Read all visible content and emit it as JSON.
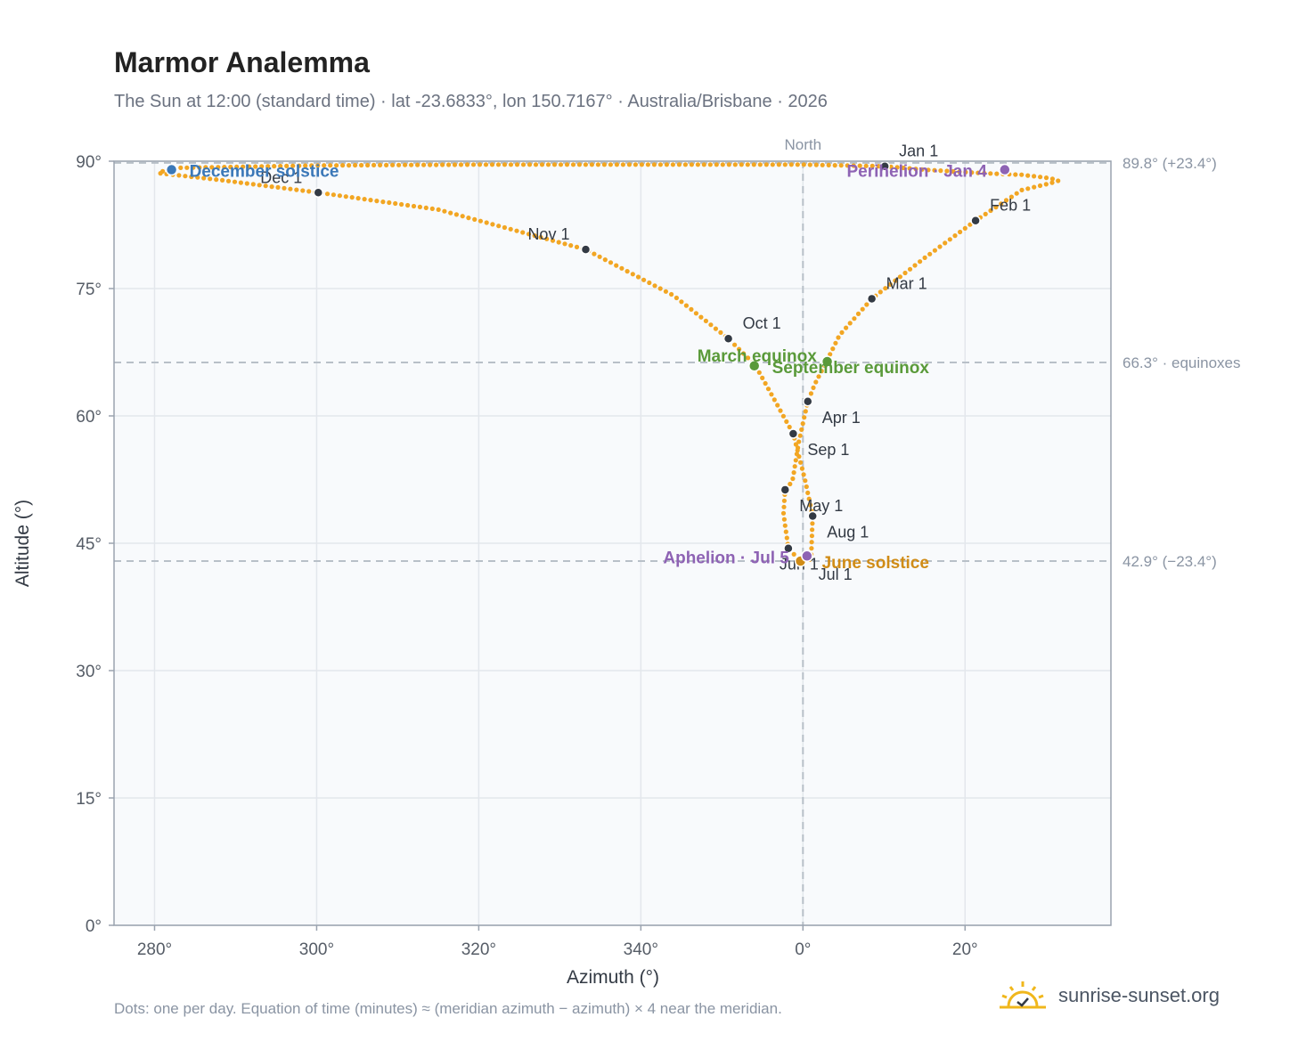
{
  "header": {
    "title": "Marmor Analemma",
    "subtitle": "The Sun at 12:00 (standard time) · lat -23.6833°, lon 150.7167° · Australia/Brisbane · 2026"
  },
  "footer": {
    "note": "Dots: one per day. Equation of time (minutes) ≈ (meridian azimuth − azimuth) × 4 near the meridian.",
    "brand": "sunrise-sunset.org"
  },
  "colors": {
    "curve": "#f2a623",
    "month_dot": "#333a44",
    "solstice_dec": "#3b78b8",
    "solstice_jun": "#d08c17",
    "equinox": "#5a9a3a",
    "apsis": "#8e63b4",
    "guide": "#b8c0c8",
    "plot_bg": "#f8fafc",
    "grid": "#e3e7ec",
    "frame": "#9aa3af"
  },
  "chart_data": {
    "type": "scatter",
    "title": "Marmor Analemma",
    "xlabel": "Azimuth (°)",
    "ylabel": "Altitude (°)",
    "xlim": [
      -85,
      38
    ],
    "ylim": [
      0,
      90
    ],
    "x_ticks": [
      {
        "value": -80,
        "label": "280°"
      },
      {
        "value": -60,
        "label": "300°"
      },
      {
        "value": -40,
        "label": "320°"
      },
      {
        "value": -20,
        "label": "340°"
      },
      {
        "value": 0,
        "label": "0°"
      },
      {
        "value": 20,
        "label": "20°"
      }
    ],
    "y_ticks": [
      {
        "value": 0,
        "label": "0°"
      },
      {
        "value": 15,
        "label": "15°"
      },
      {
        "value": 30,
        "label": "30°"
      },
      {
        "value": 45,
        "label": "45°"
      },
      {
        "value": 60,
        "label": "60°"
      },
      {
        "value": 75,
        "label": "75°"
      },
      {
        "value": 90,
        "label": "90°"
      }
    ],
    "grid": true,
    "meridian": {
      "x": 0,
      "label": "North"
    },
    "reference_lines": [
      {
        "y": 89.8,
        "label": "89.8° (+23.4°)"
      },
      {
        "y": 66.3,
        "label": "66.3° · equinoxes"
      },
      {
        "y": 42.9,
        "label": "42.9° (−23.4°)"
      }
    ],
    "series_path": [
      {
        "x": 10.1,
        "y": 89.4
      },
      {
        "x": 15,
        "y": 89.0
      },
      {
        "x": 22,
        "y": 88.6
      },
      {
        "x": 27,
        "y": 88.4
      },
      {
        "x": 30.5,
        "y": 88.0
      },
      {
        "x": 31.5,
        "y": 87.7
      },
      {
        "x": 30.5,
        "y": 87.4
      },
      {
        "x": 27,
        "y": 86.6
      },
      {
        "x": 21.3,
        "y": 83.0
      },
      {
        "x": 15,
        "y": 78.6
      },
      {
        "x": 8.5,
        "y": 73.8
      },
      {
        "x": 4.5,
        "y": 69.5
      },
      {
        "x": 3.0,
        "y": 66.6
      },
      {
        "x": 1.5,
        "y": 63.8
      },
      {
        "x": 0.6,
        "y": 61.7
      },
      {
        "x": -0.5,
        "y": 57.0
      },
      {
        "x": -1.3,
        "y": 52.3
      },
      {
        "x": -2.2,
        "y": 51.3
      },
      {
        "x": -2.4,
        "y": 48.5
      },
      {
        "x": -1.8,
        "y": 44.4
      },
      {
        "x": -0.3,
        "y": 42.9
      },
      {
        "x": 1.0,
        "y": 43.1
      },
      {
        "x": 1.2,
        "y": 48.2
      },
      {
        "x": 0.3,
        "y": 52.3
      },
      {
        "x": -1.2,
        "y": 57.9
      },
      {
        "x": -5.9,
        "y": 66.0
      },
      {
        "x": -9.2,
        "y": 69.1
      },
      {
        "x": -16,
        "y": 74.2
      },
      {
        "x": -26.8,
        "y": 79.6
      },
      {
        "x": -45,
        "y": 84.3
      },
      {
        "x": -59.8,
        "y": 86.3
      },
      {
        "x": -72,
        "y": 87.8
      },
      {
        "x": -79.5,
        "y": 88.6
      },
      {
        "x": -78,
        "y": 89.2
      },
      {
        "x": -60,
        "y": 89.5
      },
      {
        "x": -40,
        "y": 89.6
      },
      {
        "x": -20,
        "y": 89.6
      },
      {
        "x": 0,
        "y": 89.6
      },
      {
        "x": 10.1,
        "y": 89.4
      }
    ],
    "month_markers": [
      {
        "label": "Jan 1",
        "x": 10.1,
        "y": 89.4
      },
      {
        "label": "Feb 1",
        "x": 21.3,
        "y": 83.0
      },
      {
        "label": "Mar 1",
        "x": 8.5,
        "y": 73.8
      },
      {
        "label": "Apr 1",
        "x": 0.6,
        "y": 61.7
      },
      {
        "label": "May 1",
        "x": -2.2,
        "y": 51.3
      },
      {
        "label": "Jun 1",
        "x": -1.8,
        "y": 44.4
      },
      {
        "label": "Jul 1",
        "x": -0.3,
        "y": 42.9
      },
      {
        "label": "Aug 1",
        "x": 1.2,
        "y": 48.2
      },
      {
        "label": "Sep 1",
        "x": -1.2,
        "y": 57.9
      },
      {
        "label": "Oct 1",
        "x": -9.2,
        "y": 69.1
      },
      {
        "label": "Nov 1",
        "x": -26.8,
        "y": 79.6
      },
      {
        "label": "Dec 1",
        "x": -59.8,
        "y": 86.3
      }
    ],
    "events": [
      {
        "label": "December solstice",
        "x": -77.9,
        "y": 89.0,
        "kind": "solstice_dec"
      },
      {
        "label": "June solstice",
        "x": -0.3,
        "y": 42.9,
        "kind": "solstice_jun"
      },
      {
        "label": "March equinox",
        "x": -6.0,
        "y": 65.9,
        "kind": "equinox"
      },
      {
        "label": "September equinox",
        "x": 3.0,
        "y": 66.4,
        "kind": "equinox"
      },
      {
        "label": "Perihelion · Jan 4",
        "x": 24.9,
        "y": 89.0,
        "kind": "apsis"
      },
      {
        "label": "Aphelion · Jul 5",
        "x": 0.5,
        "y": 43.5,
        "kind": "apsis"
      }
    ]
  }
}
